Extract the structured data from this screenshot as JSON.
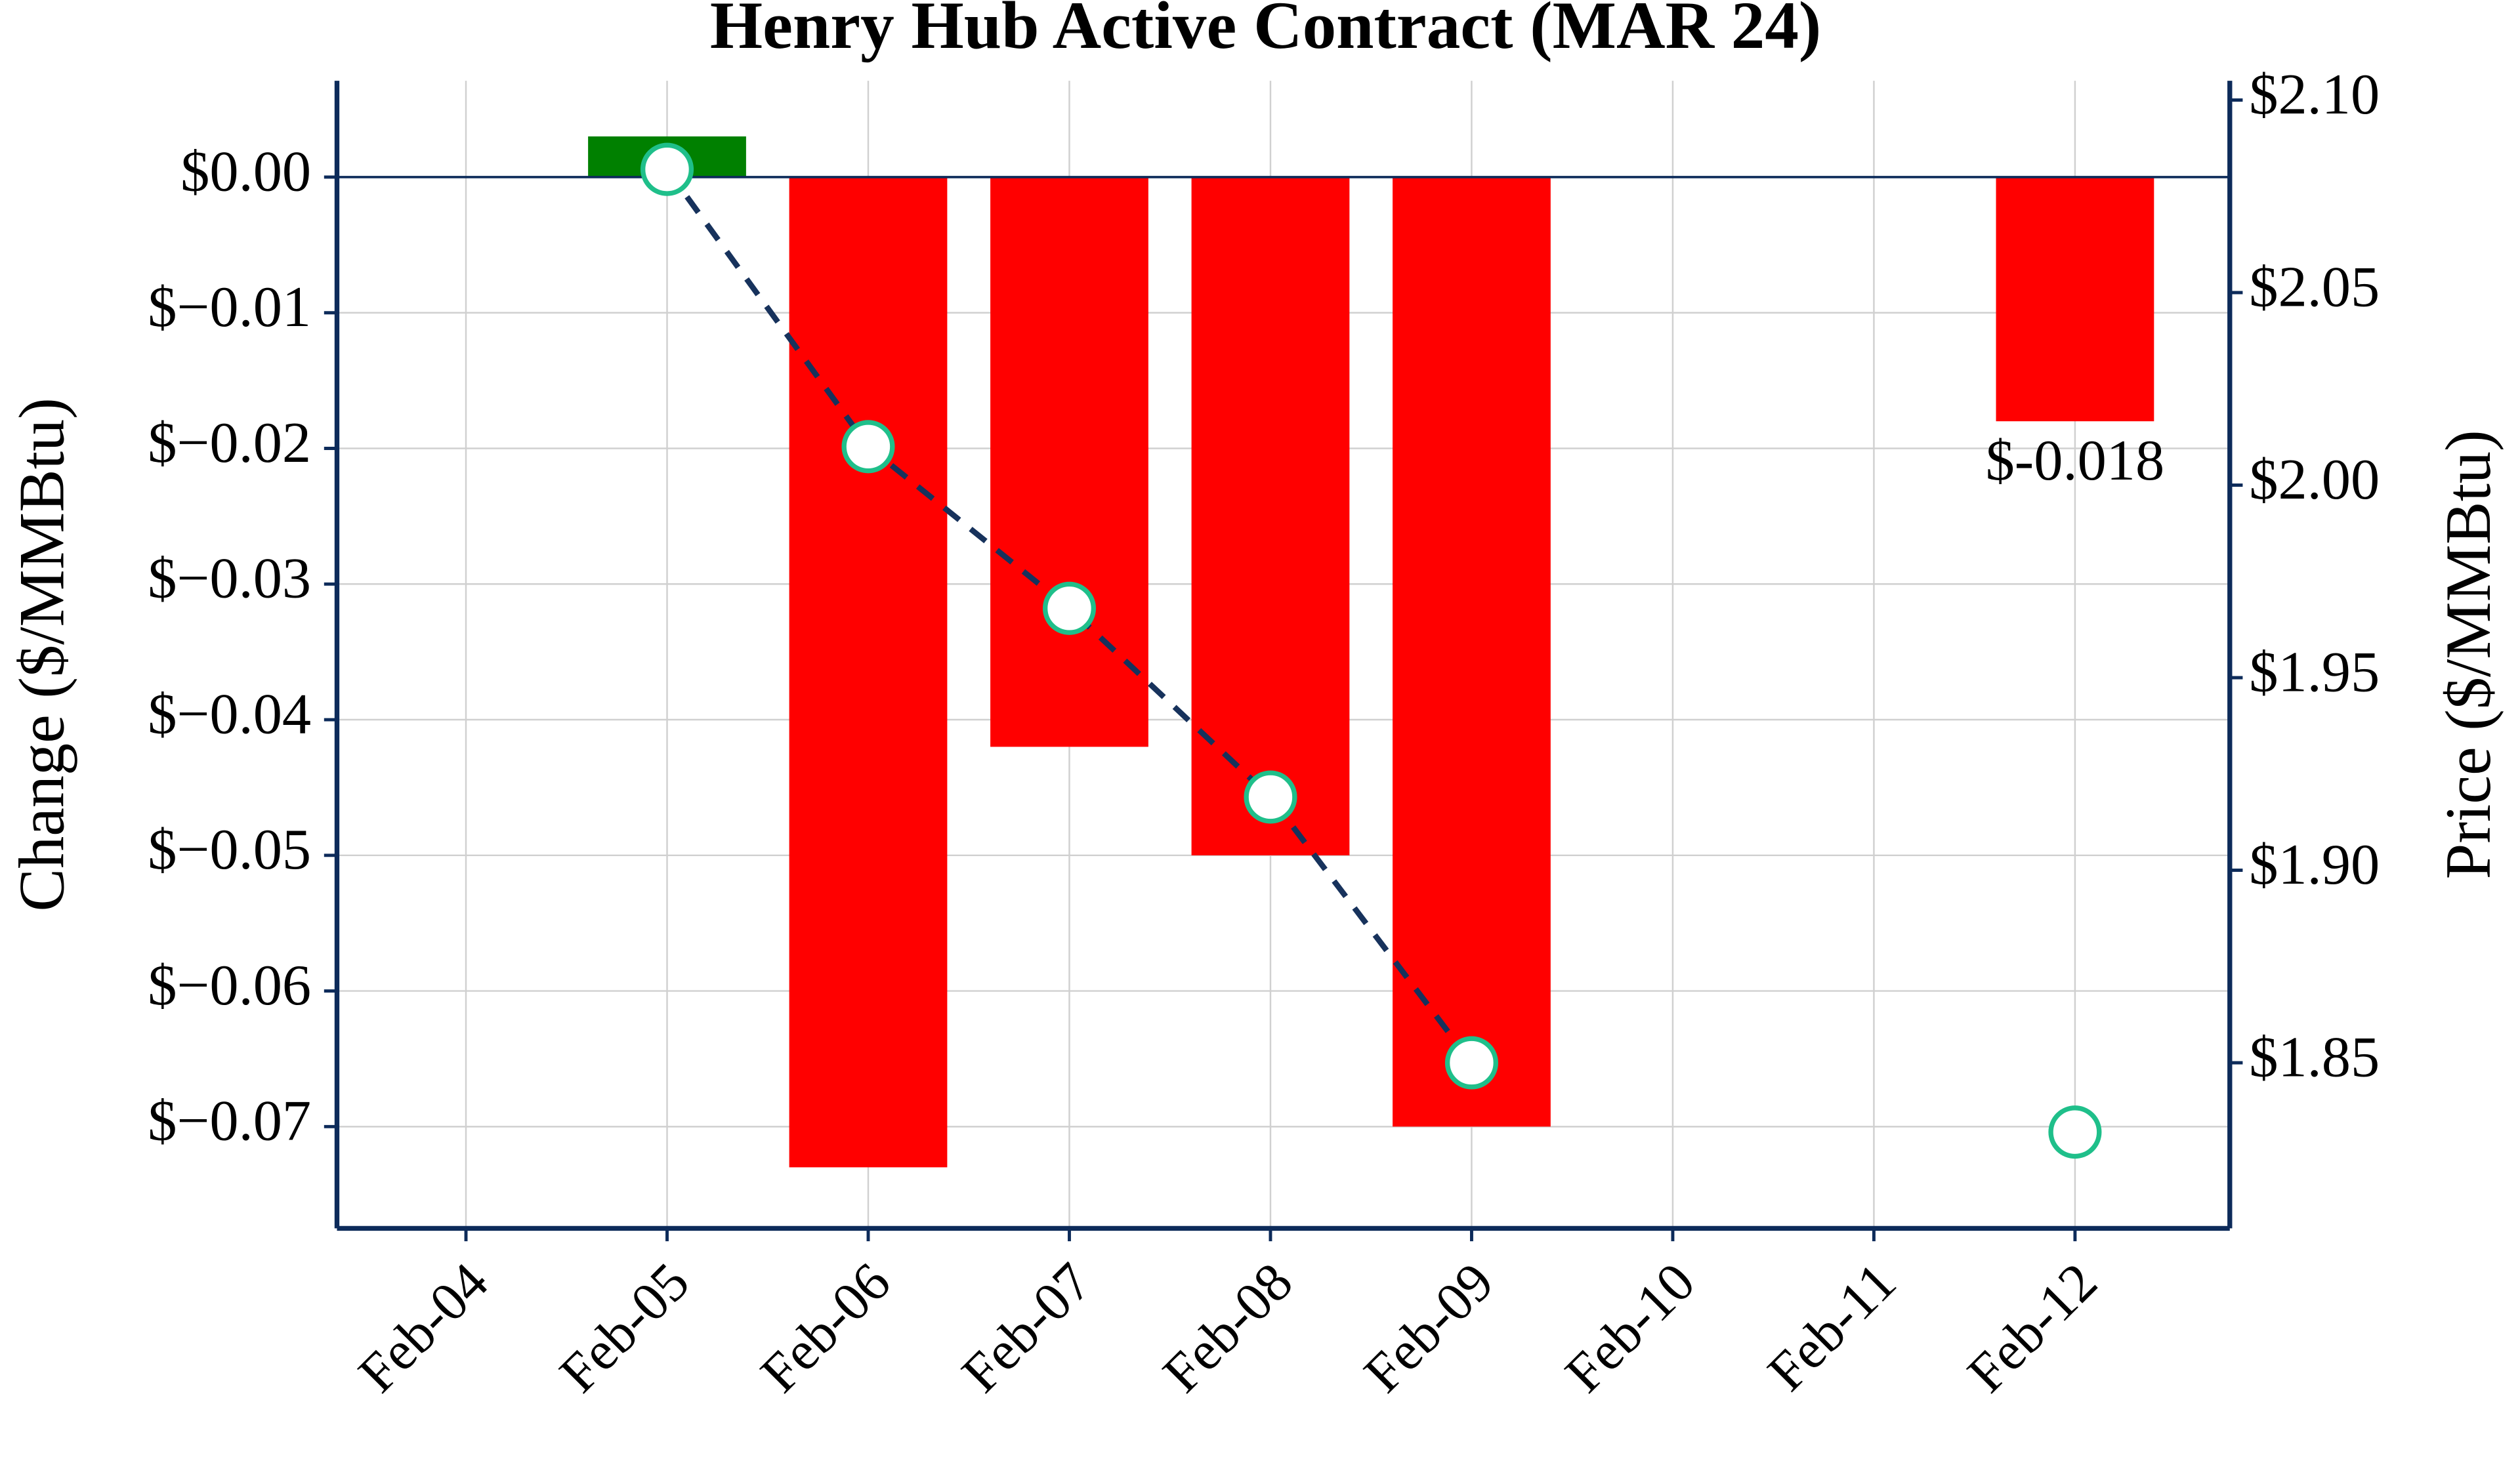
{
  "chart_data": {
    "type": "bar",
    "title": "Henry Hub Active Contract (MAR 24)",
    "y_label": "Change ($/MMBtu)",
    "y2_label": "Price ($/MMBtu)",
    "categories": [
      "Feb-04",
      "Feb-05",
      "Feb-06",
      "Feb-07",
      "Feb-08",
      "Feb-09",
      "Feb-10",
      "Feb-11",
      "Feb-12"
    ],
    "series": [
      {
        "name": "Change",
        "type": "bar",
        "up_color": "#008000",
        "down_color": "#ff0000",
        "values": [
          null,
          0.003,
          -0.073,
          -0.042,
          -0.05,
          -0.07,
          null,
          null,
          -0.018
        ],
        "value_labels": [
          null,
          null,
          null,
          null,
          null,
          null,
          null,
          null,
          "$-0.018"
        ]
      },
      {
        "name": "Price",
        "type": "line",
        "axis": "y2",
        "color": "#17325c",
        "marker_color": "#1fbf8a",
        "values": [
          null,
          2.082,
          2.01,
          1.968,
          1.919,
          1.85,
          null,
          null,
          1.832
        ]
      }
    ],
    "ylim": [
      -0.0775,
      0.0071
    ],
    "yticks": [
      {
        "value": 0,
        "label": "$0.00"
      },
      {
        "value": -0.01,
        "label": "$−0.01"
      },
      {
        "value": -0.02,
        "label": "$−0.02"
      },
      {
        "value": -0.03,
        "label": "$−0.03"
      },
      {
        "value": -0.04,
        "label": "$−0.04"
      },
      {
        "value": -0.05,
        "label": "$−0.05"
      },
      {
        "value": -0.06,
        "label": "$−0.06"
      },
      {
        "value": -0.07,
        "label": "$−0.07"
      }
    ],
    "y2lim": [
      1.807,
      2.105
    ],
    "y2ticks": [
      {
        "value": 1.85,
        "label": "$1.85"
      },
      {
        "value": 1.9,
        "label": "$1.90"
      },
      {
        "value": 1.95,
        "label": "$1.95"
      },
      {
        "value": 2.0,
        "label": "$2.00"
      },
      {
        "value": 2.05,
        "label": "$2.05"
      },
      {
        "value": 2.1,
        "label": "$2.10"
      }
    ],
    "grid": true
  }
}
